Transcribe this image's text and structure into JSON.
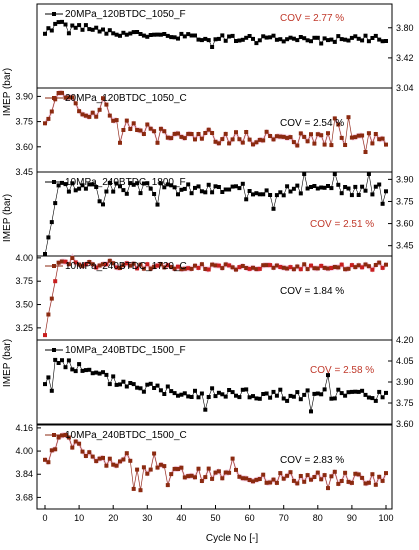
{
  "figure": {
    "xlabel": "Cycle No [-]",
    "ylabel": "IMEP (bar)",
    "x_ticks": [
      "0",
      "10",
      "20",
      "30",
      "40",
      "50",
      "60",
      "70",
      "80",
      "90",
      "100"
    ]
  },
  "colors": {
    "black_series": "#000000",
    "brown_series": "#8b2a10",
    "red_marker": "#c81e1e",
    "pink_band": "#f2b6d6",
    "cov_red": "#c0392b",
    "cov_black": "#000000"
  },
  "chart_data": [
    {
      "type": "line",
      "title": "",
      "series": [
        {
          "name": "20MPa_120BTDC_1050_F",
          "values_note": "",
          "values": []
        }
      ],
      "cov": "COV = 2.77 %",
      "cov_color": "red",
      "ylim": [
        3.04,
        4.1
      ],
      "yticks": [
        "3.80",
        "3.42",
        "3.04"
      ],
      "ytick_side": "right",
      "marker": "black",
      "band": false,
      "seed": 0,
      "level": 3.66,
      "start": 3.72,
      "peak": 3.87,
      "noise": 0.04
    },
    {
      "type": "line",
      "title": "",
      "series": [
        {
          "name": "20MPa_120BTDC_1050_C",
          "values": []
        }
      ],
      "cov": "COV = 2.54 %",
      "cov_color": "black",
      "ylim": [
        3.45,
        3.95
      ],
      "yticks": [
        "3.90",
        "3.75",
        "3.60",
        "3.45"
      ],
      "ytick_side": "left",
      "marker": "brown",
      "band": true,
      "seed": 1,
      "level": 3.64,
      "start": 3.75,
      "peak": 3.92,
      "noise": 0.04
    },
    {
      "type": "line",
      "title": "",
      "series": [
        {
          "name": "10MPa_240BTDC_1800_F",
          "values": []
        }
      ],
      "cov": "COV = 2.51 %",
      "cov_color": "red",
      "ylim": [
        3.38,
        3.95
      ],
      "yticks": [
        "3.90",
        "3.75",
        "3.60",
        "3.45"
      ],
      "ytick_side": "right",
      "marker": "black",
      "band": false,
      "seed": 2,
      "level": 3.83,
      "start": 3.4,
      "peak": 3.86,
      "noise": 0.04
    },
    {
      "type": "line",
      "title": "",
      "series": [
        {
          "name": "10MPa_240BTDC_1720_C",
          "values": []
        }
      ],
      "cov": "COV = 1.84 %",
      "cov_color": "black",
      "ylim": [
        3.12,
        4.02
      ],
      "yticks": [
        "4.00",
        "3.75",
        "3.50",
        "3.25"
      ],
      "ytick_side": "left",
      "marker": "redbrown",
      "band": true,
      "seed": 3,
      "level": 3.9,
      "start": 3.2,
      "peak": 3.95,
      "noise": 0.03
    },
    {
      "type": "line",
      "title": "",
      "series": [
        {
          "name": "10MPa_240BTDC_1500_F",
          "values": []
        }
      ],
      "cov": "COV = 2.58 %",
      "cov_color": "red",
      "ylim": [
        3.6,
        4.2
      ],
      "yticks": [
        "4.20",
        "4.05",
        "3.90",
        "3.75",
        "3.60"
      ],
      "ytick_side": "right",
      "marker": "black",
      "band": false,
      "seed": 4,
      "level": 3.8,
      "start": 3.85,
      "peak": 4.07,
      "noise": 0.045
    },
    {
      "type": "line",
      "title": "",
      "series": [
        {
          "name": "10MPa_240BTDC_1500_C",
          "values": []
        }
      ],
      "cov": "COV = 2.83 %",
      "cov_color": "black",
      "ylim": [
        3.6,
        4.18
      ],
      "yticks": [
        "4.16",
        "4.00",
        "3.84",
        "3.68"
      ],
      "ytick_side": "left",
      "marker": "brown",
      "band": true,
      "seed": 5,
      "level": 3.81,
      "start": 3.92,
      "peak": 4.1,
      "noise": 0.045
    }
  ]
}
